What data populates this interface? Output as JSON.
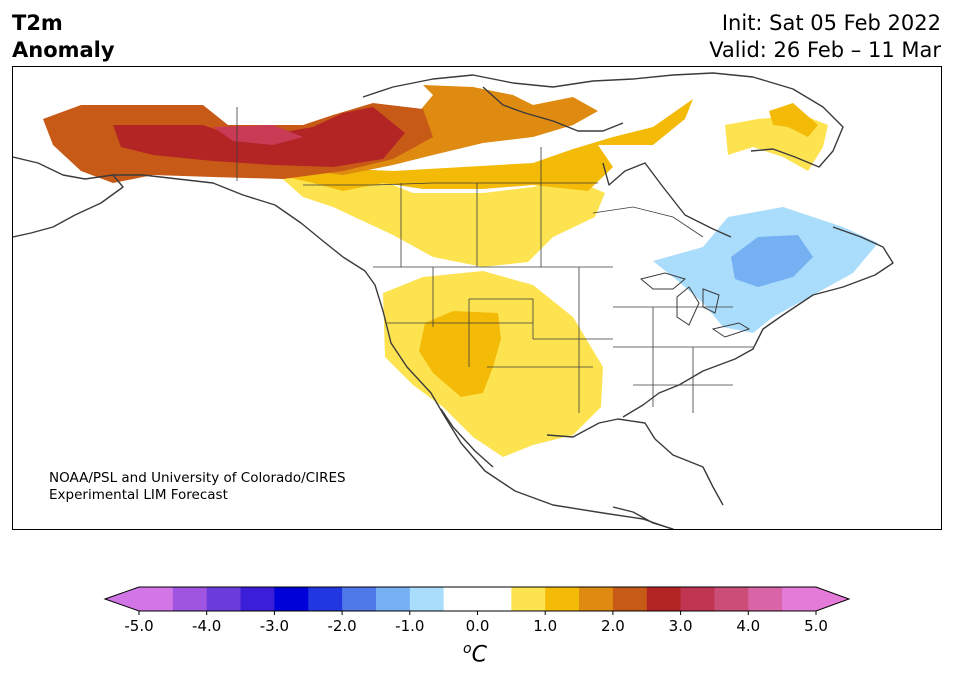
{
  "title": {
    "left_line1": "T2m",
    "left_line2": "Anomaly",
    "init": "Init: Sat 05 Feb 2022",
    "valid": "Valid: 26 Feb – 11 Mar"
  },
  "credit": {
    "line1": "NOAA/PSL and University of Colorado/CIRES",
    "line2": "Experimental LIM Forecast"
  },
  "colorbar": {
    "unit_sup": "o",
    "unit": "C",
    "tick_labels": [
      "-5.0",
      "-4.0",
      "-3.0",
      "-2.0",
      "-1.0",
      "0.0",
      "1.0",
      "2.0",
      "3.0",
      "4.0",
      "5.0"
    ],
    "colors": [
      "#d275e6",
      "#a055e0",
      "#6c3bdc",
      "#3a1ed8",
      "#0000d8",
      "#2138e0",
      "#4f78e8",
      "#75b0f2",
      "#aadcfc",
      "#ffffff",
      "#ffffff",
      "#fee351",
      "#f3bb08",
      "#df8a10",
      "#c85a18",
      "#b32424",
      "#c03552",
      "#cc4d78",
      "#d964a8",
      "#e57bd8"
    ],
    "under_color": "#d275e6",
    "over_color": "#e57bd8"
  },
  "map": {
    "region": "North America",
    "warm_anomaly_colors": [
      "#fee351",
      "#f3bb08",
      "#df8a10",
      "#c85a18",
      "#b32424",
      "#c93a55"
    ],
    "cool_anomaly_colors": [
      "#aadcfc",
      "#75b0f2"
    ]
  }
}
